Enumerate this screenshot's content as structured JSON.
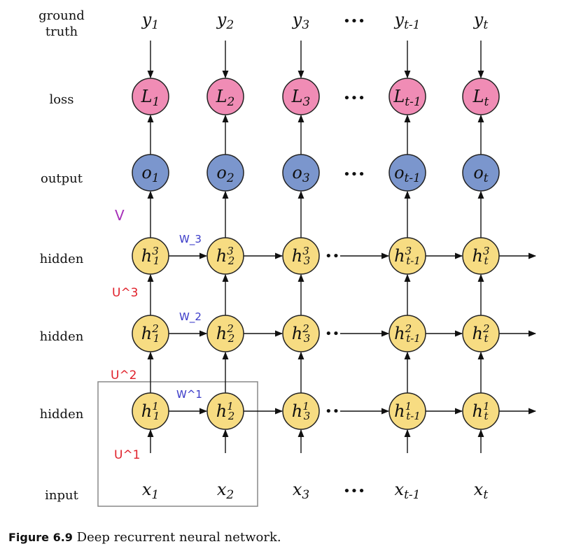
{
  "row_labels": {
    "ground_truth_line1": "ground",
    "ground_truth_line2": "truth",
    "loss": "loss",
    "output": "output",
    "hidden3": "hidden",
    "hidden2": "hidden",
    "hidden1": "hidden",
    "input": "input"
  },
  "columns": [
    {
      "y_base": "y",
      "y_sub": "1",
      "L_sub": "1",
      "o_sub": "1",
      "h_sub": "1",
      "x_sub": "1"
    },
    {
      "y_base": "y",
      "y_sub": "2",
      "L_sub": "2",
      "o_sub": "2",
      "h_sub": "2",
      "x_sub": "2"
    },
    {
      "y_base": "y",
      "y_sub": "3",
      "L_sub": "3",
      "o_sub": "3",
      "h_sub": "3",
      "x_sub": "3"
    },
    {
      "y_base": "y",
      "y_sub": "t-1",
      "L_sub": "t-1",
      "o_sub": "t-1",
      "h_sub": "t-1",
      "x_sub": "t-1"
    },
    {
      "y_base": "y",
      "y_sub": "t",
      "L_sub": "t",
      "o_sub": "t",
      "h_sub": "t",
      "x_sub": "t"
    }
  ],
  "symbols": {
    "loss": "L",
    "output": "o",
    "hidden": "h",
    "input": "x",
    "ground_truth": "y"
  },
  "hidden_layers": [
    "3",
    "2",
    "1"
  ],
  "ellipsis": "•••",
  "hidden_ellipsis": "••",
  "weight_labels": {
    "V": "V",
    "W3": "W_3",
    "W2": "W_2",
    "W1": "W^1",
    "U3": "U^3",
    "U2": "U^2",
    "U1": "U^1"
  },
  "colors": {
    "loss_fill": "#f08cb5",
    "output_fill": "#7b96cd",
    "hidden_fill": "#f7dc82",
    "node_stroke": "#222222",
    "w_label": "#3a3ac8",
    "u_label": "#e0202a",
    "v_label": "#a62fb8",
    "box_stroke": "#888888"
  },
  "caption": {
    "figure": "Figure 6.9",
    "text": "Deep recurrent neural network."
  }
}
